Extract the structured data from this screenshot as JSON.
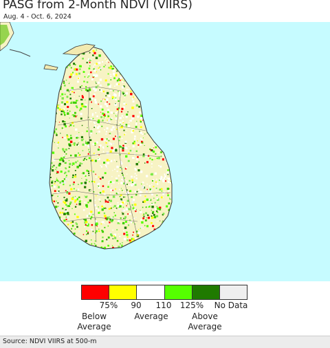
{
  "title": "PASG from 2-Month NDVI (VIIRS)",
  "subtitle": "Aug. 4 - Oct. 6, 2024",
  "colors": {
    "ocean": "#c6fbff",
    "land": "#f7f3c4",
    "boundary": "#444444"
  },
  "legend": {
    "colors": [
      "#ff0000",
      "#ffff00",
      "#ffffff",
      "#55ff00",
      "#1f7a00",
      "#efefef"
    ],
    "ticks": [
      "75%",
      "90",
      "110",
      "125%",
      "No Data"
    ],
    "below_line1": "Below",
    "below_line2": "Average",
    "average": "Average",
    "above_line1": "Above",
    "above_line2": "Average"
  },
  "source": "Source: NDVI VIIRS at 500-m"
}
